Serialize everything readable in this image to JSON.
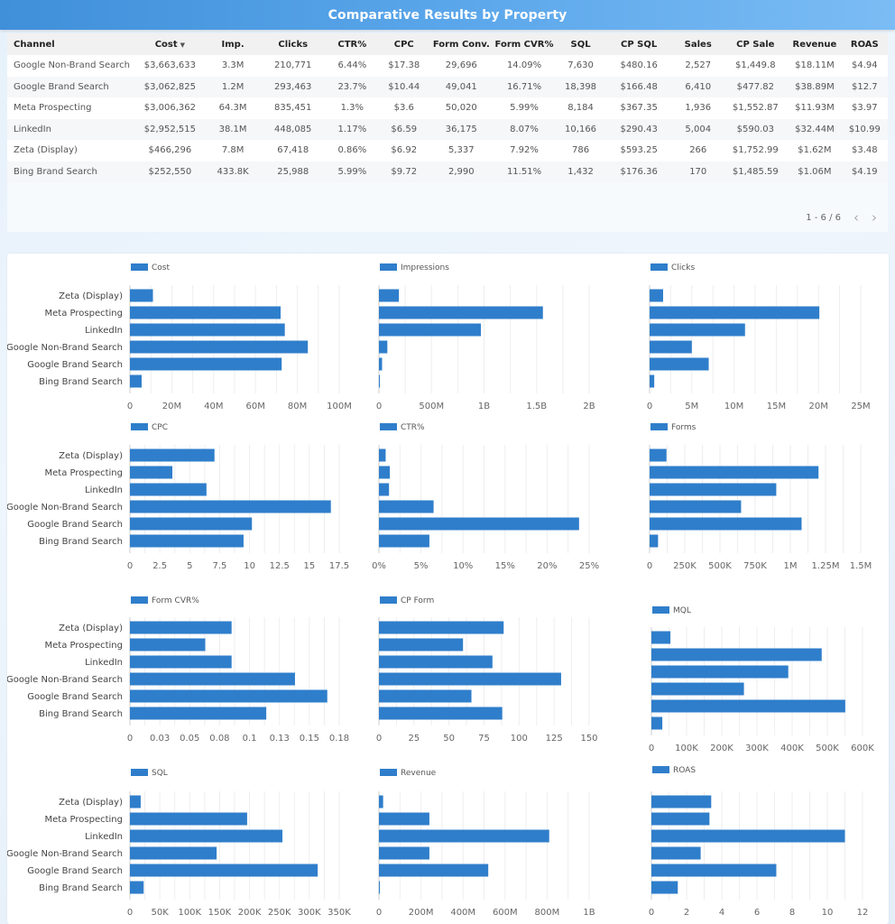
{
  "header": {
    "title": "Comparative Results by Property"
  },
  "table": {
    "sorted_column": "Cost",
    "sort_direction": "descending",
    "columns": [
      "Channel",
      "Cost",
      "Imp.",
      "Clicks",
      "CTR%",
      "CPC",
      "Form Conv.",
      "Form CVR%",
      "SQL",
      "CP SQL",
      "Sales",
      "CP Sale",
      "Revenue",
      "ROAS"
    ],
    "rows": [
      [
        "Google Non-Brand Search",
        "$3,663,633",
        "3.3M",
        "210,771",
        "6.44%",
        "$17.38",
        "29,696",
        "14.09%",
        "7,630",
        "$480.16",
        "2,527",
        "$1,449.8",
        "$18.11M",
        "$4.94"
      ],
      [
        "Google Brand Search",
        "$3,062,825",
        "1.2M",
        "293,463",
        "23.7%",
        "$10.44",
        "49,041",
        "16.71%",
        "18,398",
        "$166.48",
        "6,410",
        "$477.82",
        "$38.89M",
        "$12.7"
      ],
      [
        "Meta Prospecting",
        "$3,006,362",
        "64.3M",
        "835,451",
        "1.3%",
        "$3.6",
        "50,020",
        "5.99%",
        "8,184",
        "$367.35",
        "1,936",
        "$1,552.87",
        "$11.93M",
        "$3.97"
      ],
      [
        "LinkedIn",
        "$2,952,515",
        "38.1M",
        "448,085",
        "1.17%",
        "$6.59",
        "36,175",
        "8.07%",
        "10,166",
        "$290.43",
        "5,004",
        "$590.03",
        "$32.44M",
        "$10.99"
      ],
      [
        "Zeta (Display)",
        "$466,296",
        "7.8M",
        "67,418",
        "0.86%",
        "$6.92",
        "5,337",
        "7.92%",
        "786",
        "$593.25",
        "266",
        "$1,752.99",
        "$1.62M",
        "$3.48"
      ],
      [
        "Bing Brand Search",
        "$252,550",
        "433.8K",
        "25,988",
        "5.99%",
        "$9.72",
        "2,990",
        "11.51%",
        "1,432",
        "$176.36",
        "170",
        "$1,485.59",
        "$1.06M",
        "$4.19"
      ]
    ],
    "pagination": {
      "range_label": "1 - 6 / 6",
      "prev_icon": "chevron-left-icon",
      "next_icon": "chevron-right-icon"
    }
  },
  "colors": {
    "bar": "#2f7ecb",
    "header_start": "#3f8fd9",
    "header_end": "#7bbcf4",
    "grid": "#eeeeee"
  },
  "chart_data": [
    {
      "type": "bar",
      "orientation": "horizontal",
      "title": "Cost",
      "legend": "Cost",
      "legend_position": "top-left",
      "categories": [
        "Zeta (Display)",
        "Meta Prospecting",
        "LinkedIn",
        "Google Non-Brand Search",
        "Google Brand Search",
        "Bing Brand Search"
      ],
      "values": [
        11000000,
        72000000,
        74000000,
        85000000,
        72500000,
        5600000
      ],
      "xlim": [
        0,
        100000000
      ],
      "ticks": [
        0,
        20000000,
        40000000,
        60000000,
        80000000,
        100000000
      ],
      "tick_labels": [
        "0",
        "20M",
        "40M",
        "60M",
        "80M",
        "100M"
      ],
      "grid": true,
      "show_category_labels": true
    },
    {
      "type": "bar",
      "orientation": "horizontal",
      "title": "Impressions",
      "legend": "Impressions",
      "legend_position": "top-left",
      "categories": [
        "Zeta (Display)",
        "Meta Prospecting",
        "LinkedIn",
        "Google Non-Brand Search",
        "Google Brand Search",
        "Bing Brand Search"
      ],
      "values": [
        190000000,
        1560000000,
        970000000,
        80000000,
        30000000,
        5000000
      ],
      "xlim": [
        0,
        2000000000
      ],
      "ticks": [
        0,
        500000000,
        1000000000,
        1500000000,
        2000000000
      ],
      "tick_labels": [
        "0",
        "500M",
        "1B",
        "1.5B",
        "2B"
      ],
      "grid": true,
      "show_category_labels": false
    },
    {
      "type": "bar",
      "orientation": "horizontal",
      "title": "Clicks",
      "legend": "Clicks",
      "legend_position": "top-left",
      "categories": [
        "Zeta (Display)",
        "Meta Prospecting",
        "LinkedIn",
        "Google Non-Brand Search",
        "Google Brand Search",
        "Bing Brand Search"
      ],
      "values": [
        1600000,
        20100000,
        11300000,
        5000000,
        7000000,
        550000
      ],
      "xlim": [
        0,
        25000000
      ],
      "ticks": [
        0,
        5000000,
        10000000,
        15000000,
        20000000,
        25000000
      ],
      "tick_labels": [
        "0",
        "5M",
        "10M",
        "15M",
        "20M",
        "25M"
      ],
      "grid": true,
      "show_category_labels": false
    },
    {
      "type": "bar",
      "orientation": "horizontal",
      "title": "CPC",
      "legend": "CPC",
      "legend_position": "top-left",
      "categories": [
        "Zeta (Display)",
        "Meta Prospecting",
        "LinkedIn",
        "Google Non-Brand Search",
        "Google Brand Search",
        "Bing Brand Search"
      ],
      "values": [
        7.07,
        3.55,
        6.4,
        16.8,
        10.2,
        9.5
      ],
      "xlim": [
        0,
        17.5
      ],
      "ticks": [
        0,
        2.5,
        5,
        7.5,
        10,
        12.5,
        15,
        17.5
      ],
      "tick_labels": [
        "0",
        "2.5",
        "5",
        "7.5",
        "10",
        "12.5",
        "15",
        "17.5"
      ],
      "grid": true,
      "show_category_labels": true
    },
    {
      "type": "bar",
      "orientation": "horizontal",
      "title": "CTR%",
      "legend": "CTR%",
      "legend_position": "top-left",
      "categories": [
        "Zeta (Display)",
        "Meta Prospecting",
        "LinkedIn",
        "Google Non-Brand Search",
        "Google Brand Search",
        "Bing Brand Search"
      ],
      "values": [
        0.8,
        1.3,
        1.2,
        6.5,
        23.8,
        6.0
      ],
      "xlim": [
        0,
        25
      ],
      "ticks": [
        0,
        5,
        10,
        15,
        20,
        25
      ],
      "tick_labels": [
        "0%",
        "5%",
        "10%",
        "15%",
        "20%",
        "25%"
      ],
      "grid": true,
      "show_category_labels": false
    },
    {
      "type": "bar",
      "orientation": "horizontal",
      "title": "Forms",
      "legend": "Forms",
      "legend_position": "top-left",
      "categories": [
        "Zeta (Display)",
        "Meta Prospecting",
        "LinkedIn",
        "Google Non-Brand Search",
        "Google Brand Search",
        "Bing Brand Search"
      ],
      "values": [
        120000,
        1200000,
        900000,
        650000,
        1080000,
        60000
      ],
      "xlim": [
        0,
        1500000
      ],
      "ticks": [
        0,
        250000,
        500000,
        750000,
        1000000,
        1250000,
        1500000
      ],
      "tick_labels": [
        "0",
        "250K",
        "500K",
        "750K",
        "1M",
        "1.25M",
        "1.5M"
      ],
      "grid": true,
      "show_category_labels": false
    },
    {
      "type": "bar",
      "orientation": "horizontal",
      "title": "Form CVR%",
      "legend": "Form CVR%",
      "legend_position": "top-left",
      "categories": [
        "Zeta (Display)",
        "Meta Prospecting",
        "LinkedIn",
        "Google Non-Brand Search",
        "Google Brand Search",
        "Bing Brand Search"
      ],
      "values": [
        0.085,
        0.063,
        0.085,
        0.138,
        0.165,
        0.114
      ],
      "xlim": [
        0,
        0.175
      ],
      "ticks": [
        0,
        0.025,
        0.05,
        0.075,
        0.1,
        0.125,
        0.15,
        0.175
      ],
      "tick_labels": [
        "0",
        "0.03",
        "0.05",
        "0.08",
        "0.1",
        "0.13",
        "0.15",
        "0.18"
      ],
      "grid": true,
      "show_category_labels": true
    },
    {
      "type": "bar",
      "orientation": "horizontal",
      "title": "CP Form",
      "legend": "CP Form",
      "legend_position": "top-left",
      "categories": [
        "Zeta (Display)",
        "Meta Prospecting",
        "LinkedIn",
        "Google Non-Brand Search",
        "Google Brand Search",
        "Bing Brand Search"
      ],
      "values": [
        89,
        60,
        81,
        130,
        66,
        88
      ],
      "xlim": [
        0,
        150
      ],
      "ticks": [
        0,
        25,
        50,
        75,
        100,
        125,
        150
      ],
      "tick_labels": [
        "0",
        "25",
        "50",
        "75",
        "100",
        "125",
        "150"
      ],
      "grid": true,
      "show_category_labels": false
    },
    {
      "type": "bar",
      "orientation": "horizontal",
      "title": "MQL",
      "legend": "MQL",
      "legend_position": "top-left",
      "categories": [
        "Zeta (Display)",
        "Meta Prospecting",
        "LinkedIn",
        "Google Non-Brand Search",
        "Google Brand Search",
        "Bing Brand Search"
      ],
      "values": [
        54000,
        484000,
        389000,
        263000,
        551000,
        31000
      ],
      "xlim": [
        0,
        600000
      ],
      "ticks": [
        0,
        100000,
        200000,
        300000,
        400000,
        500000,
        600000
      ],
      "tick_labels": [
        "0",
        "100K",
        "200K",
        "300K",
        "400K",
        "500K",
        "600K"
      ],
      "grid": true,
      "show_category_labels": false
    },
    {
      "type": "bar",
      "orientation": "horizontal",
      "title": "SQL",
      "legend": "SQL",
      "legend_position": "top-left",
      "categories": [
        "Zeta (Display)",
        "Meta Prospecting",
        "LinkedIn",
        "Google Non-Brand Search",
        "Google Brand Search",
        "Bing Brand Search"
      ],
      "values": [
        18000,
        196000,
        255000,
        145000,
        314000,
        23000
      ],
      "xlim": [
        0,
        350000
      ],
      "ticks": [
        0,
        50000,
        100000,
        150000,
        200000,
        250000,
        300000,
        350000
      ],
      "tick_labels": [
        "0",
        "50K",
        "100K",
        "150K",
        "200K",
        "250K",
        "300K",
        "350K"
      ],
      "grid": true,
      "show_category_labels": true
    },
    {
      "type": "bar",
      "orientation": "horizontal",
      "title": "Revenue",
      "legend": "Revenue",
      "legend_position": "top-left",
      "categories": [
        "Zeta (Display)",
        "Meta Prospecting",
        "LinkedIn",
        "Google Non-Brand Search",
        "Google Brand Search",
        "Bing Brand Search"
      ],
      "values": [
        20000000,
        240000000,
        810000000,
        240000000,
        520000000,
        4000000
      ],
      "xlim": [
        0,
        1000000000
      ],
      "ticks": [
        0,
        200000000,
        400000000,
        600000000,
        800000000,
        1000000000
      ],
      "tick_labels": [
        "0",
        "200M",
        "400M",
        "600M",
        "800M",
        "1B"
      ],
      "grid": true,
      "show_category_labels": false
    },
    {
      "type": "bar",
      "orientation": "horizontal",
      "title": "ROAS",
      "legend": "ROAS",
      "legend_position": "top-left",
      "categories": [
        "Zeta (Display)",
        "Meta Prospecting",
        "LinkedIn",
        "Google Non-Brand Search",
        "Google Brand Search",
        "Bing Brand Search"
      ],
      "values": [
        3.4,
        3.3,
        11.0,
        2.8,
        7.1,
        1.5
      ],
      "xlim": [
        0,
        12
      ],
      "ticks": [
        0,
        2,
        4,
        6,
        8,
        10,
        12
      ],
      "tick_labels": [
        "0",
        "2",
        "4",
        "6",
        "8",
        "10",
        "12"
      ],
      "grid": true,
      "show_category_labels": false
    }
  ]
}
